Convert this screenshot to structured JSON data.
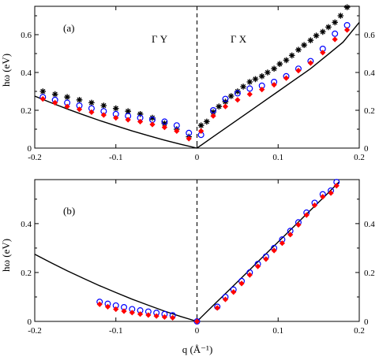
{
  "chart_data": [
    {
      "type": "scatter",
      "panel_label": "(a)",
      "region_labels": [
        "Γ Y",
        "Γ X"
      ],
      "ylabel": "hω (eV)",
      "xlabel": "",
      "xlim": [
        -0.2,
        0.2
      ],
      "ylim": [
        0,
        0.75
      ],
      "xticks": [
        "-0.2",
        "-0.1",
        "0",
        "0.1",
        "0.2"
      ],
      "xtick_values": [
        -0.2,
        -0.1,
        0,
        0.1,
        0.2
      ],
      "yticks": [
        "0",
        "0.2",
        "0.4",
        "0.6"
      ],
      "ytick_values": [
        0,
        0.2,
        0.4,
        0.6
      ],
      "curve": {
        "x": [
          -0.2,
          -0.18,
          -0.16,
          -0.14,
          -0.12,
          -0.1,
          -0.08,
          -0.06,
          -0.04,
          -0.02,
          0,
          0.02,
          0.04,
          0.06,
          0.08,
          0.1,
          0.12,
          0.14,
          0.16,
          0.18,
          0.2
        ],
        "y": [
          0.275,
          0.24,
          0.207,
          0.176,
          0.146,
          0.118,
          0.091,
          0.066,
          0.042,
          0.02,
          0,
          0.06,
          0.12,
          0.18,
          0.24,
          0.3,
          0.36,
          0.42,
          0.49,
          0.56,
          0.665
        ]
      },
      "series": [
        {
          "marker": "asterisk",
          "color": "#000000",
          "x": [
            -0.19,
            -0.175,
            -0.16,
            -0.145,
            -0.13,
            -0.115,
            -0.1,
            -0.085,
            -0.07,
            -0.055,
            -0.04,
            -0.025,
            -0.01,
            0.005,
            0.012,
            0.02,
            0.027,
            0.035,
            0.042,
            0.05,
            0.057,
            0.065,
            0.072,
            0.08,
            0.087,
            0.095,
            0.102,
            0.11,
            0.117,
            0.125,
            0.132,
            0.14,
            0.147,
            0.155,
            0.162,
            0.17,
            0.177,
            0.185
          ],
          "y": [
            0.3,
            0.285,
            0.27,
            0.255,
            0.24,
            0.225,
            0.21,
            0.195,
            0.18,
            0.16,
            0.13,
            0.1,
            0.06,
            0.12,
            0.14,
            0.19,
            0.22,
            0.245,
            0.275,
            0.3,
            0.325,
            0.35,
            0.365,
            0.38,
            0.4,
            0.42,
            0.445,
            0.465,
            0.49,
            0.52,
            0.545,
            0.57,
            0.595,
            0.615,
            0.64,
            0.665,
            0.7,
            0.745
          ]
        },
        {
          "marker": "open-circle",
          "color": "#0000ff",
          "x": [
            -0.19,
            -0.175,
            -0.16,
            -0.145,
            -0.13,
            -0.115,
            -0.1,
            -0.085,
            -0.07,
            -0.055,
            -0.04,
            -0.025,
            -0.01,
            0.005,
            0.02,
            0.035,
            0.05,
            0.065,
            0.08,
            0.095,
            0.11,
            0.125,
            0.14,
            0.155,
            0.17,
            0.185
          ],
          "y": [
            0.27,
            0.255,
            0.24,
            0.225,
            0.21,
            0.195,
            0.18,
            0.17,
            0.16,
            0.15,
            0.14,
            0.12,
            0.08,
            0.07,
            0.2,
            0.26,
            0.29,
            0.315,
            0.33,
            0.35,
            0.38,
            0.42,
            0.46,
            0.525,
            0.605,
            0.65
          ]
        },
        {
          "marker": "filled-diamond",
          "color": "#ff0000",
          "x": [
            -0.19,
            -0.175,
            -0.16,
            -0.145,
            -0.13,
            -0.115,
            -0.1,
            -0.085,
            -0.07,
            -0.055,
            -0.04,
            -0.025,
            -0.01,
            0.005,
            0.02,
            0.035,
            0.05,
            0.065,
            0.08,
            0.095,
            0.11,
            0.125,
            0.14,
            0.155,
            0.17,
            0.185
          ],
          "y": [
            0.26,
            0.24,
            0.22,
            0.205,
            0.19,
            0.175,
            0.16,
            0.15,
            0.14,
            0.125,
            0.11,
            0.09,
            0.05,
            0.09,
            0.17,
            0.22,
            0.255,
            0.285,
            0.31,
            0.335,
            0.37,
            0.41,
            0.45,
            0.505,
            0.575,
            0.625
          ]
        }
      ]
    },
    {
      "type": "scatter",
      "panel_label": "(b)",
      "ylabel": "hω (eV)",
      "xlabel": "q (Å⁻¹)",
      "xlim": [
        -0.2,
        0.2
      ],
      "ylim": [
        0,
        0.58
      ],
      "xticks": [
        "-0.2",
        "-0.1",
        "0",
        "0.1",
        "0.2"
      ],
      "xtick_values": [
        -0.2,
        -0.1,
        0,
        0.1,
        0.2
      ],
      "yticks": [
        "0",
        "0.2",
        "0.4"
      ],
      "ytick_values": [
        0,
        0.2,
        0.4
      ],
      "curve": {
        "x": [
          -0.2,
          -0.18,
          -0.16,
          -0.14,
          -0.12,
          -0.1,
          -0.08,
          -0.06,
          -0.04,
          -0.02,
          0,
          0.02,
          0.04,
          0.06,
          0.08,
          0.1,
          0.12,
          0.14,
          0.16,
          0.175
        ],
        "y": [
          0.275,
          0.24,
          0.207,
          0.176,
          0.146,
          0.118,
          0.091,
          0.066,
          0.042,
          0.02,
          0,
          0.065,
          0.13,
          0.195,
          0.26,
          0.325,
          0.39,
          0.455,
          0.52,
          0.57
        ]
      },
      "series": [
        {
          "marker": "open-circle",
          "color": "#0000ff",
          "x": [
            -0.12,
            -0.11,
            -0.1,
            -0.09,
            -0.08,
            -0.07,
            -0.06,
            -0.05,
            -0.04,
            -0.03,
            0.0,
            0.025,
            0.035,
            0.045,
            0.055,
            0.065,
            0.075,
            0.085,
            0.095,
            0.105,
            0.115,
            0.125,
            0.135,
            0.145,
            0.155,
            0.165,
            0.172
          ],
          "y": [
            0.08,
            0.072,
            0.065,
            0.058,
            0.05,
            0.045,
            0.04,
            0.035,
            0.03,
            0.025,
            0.0,
            0.06,
            0.1,
            0.13,
            0.165,
            0.2,
            0.235,
            0.265,
            0.3,
            0.335,
            0.37,
            0.405,
            0.445,
            0.485,
            0.52,
            0.535,
            0.57
          ]
        },
        {
          "marker": "filled-diamond",
          "color": "#ff0000",
          "x": [
            -0.12,
            -0.11,
            -0.1,
            -0.09,
            -0.08,
            -0.07,
            -0.06,
            -0.05,
            -0.04,
            -0.03,
            0.0,
            0.025,
            0.035,
            0.045,
            0.055,
            0.065,
            0.075,
            0.085,
            0.095,
            0.105,
            0.115,
            0.125,
            0.135,
            0.145,
            0.155,
            0.165,
            0.172
          ],
          "y": [
            0.07,
            0.06,
            0.05,
            0.042,
            0.036,
            0.03,
            0.026,
            0.022,
            0.018,
            0.015,
            0.0,
            0.055,
            0.09,
            0.12,
            0.155,
            0.19,
            0.225,
            0.255,
            0.29,
            0.32,
            0.355,
            0.395,
            0.435,
            0.475,
            0.51,
            0.525,
            0.555
          ]
        }
      ]
    }
  ]
}
